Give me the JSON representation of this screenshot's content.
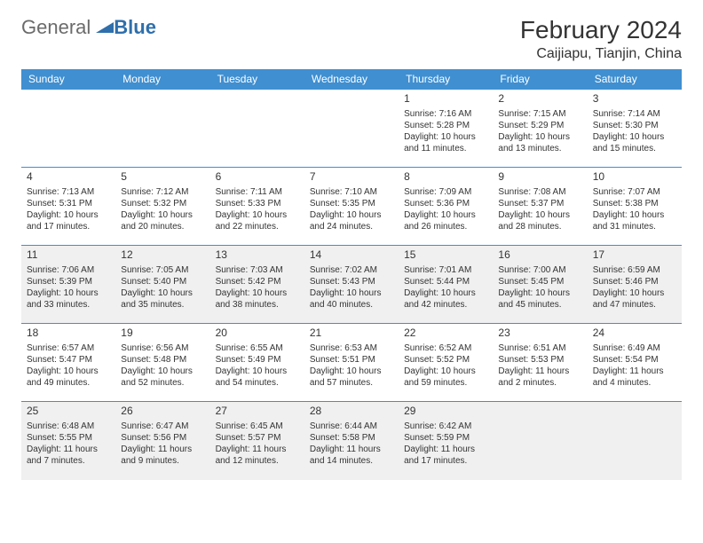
{
  "logo": {
    "part1": "General",
    "part2": "Blue",
    "shape_color": "#2f6fab"
  },
  "title": "February 2024",
  "location": "Caijiapu, Tianjin, China",
  "colors": {
    "header_bg": "#3f8fd1",
    "header_text": "#ffffff",
    "cell_border": "#3f8fd1",
    "shade_bg": "#f0f0f0",
    "text": "#333333",
    "logo_gray": "#6b6b6b",
    "logo_blue": "#2f6fab"
  },
  "day_headers": [
    "Sunday",
    "Monday",
    "Tuesday",
    "Wednesday",
    "Thursday",
    "Friday",
    "Saturday"
  ],
  "weeks": [
    [
      {
        "empty": true
      },
      {
        "empty": true
      },
      {
        "empty": true
      },
      {
        "empty": true
      },
      {
        "n": "1",
        "sr": "7:16 AM",
        "ss": "5:28 PM",
        "dl": "10 hours and 11 minutes."
      },
      {
        "n": "2",
        "sr": "7:15 AM",
        "ss": "5:29 PM",
        "dl": "10 hours and 13 minutes."
      },
      {
        "n": "3",
        "sr": "7:14 AM",
        "ss": "5:30 PM",
        "dl": "10 hours and 15 minutes."
      }
    ],
    [
      {
        "n": "4",
        "sr": "7:13 AM",
        "ss": "5:31 PM",
        "dl": "10 hours and 17 minutes."
      },
      {
        "n": "5",
        "sr": "7:12 AM",
        "ss": "5:32 PM",
        "dl": "10 hours and 20 minutes."
      },
      {
        "n": "6",
        "sr": "7:11 AM",
        "ss": "5:33 PM",
        "dl": "10 hours and 22 minutes."
      },
      {
        "n": "7",
        "sr": "7:10 AM",
        "ss": "5:35 PM",
        "dl": "10 hours and 24 minutes."
      },
      {
        "n": "8",
        "sr": "7:09 AM",
        "ss": "5:36 PM",
        "dl": "10 hours and 26 minutes."
      },
      {
        "n": "9",
        "sr": "7:08 AM",
        "ss": "5:37 PM",
        "dl": "10 hours and 28 minutes."
      },
      {
        "n": "10",
        "sr": "7:07 AM",
        "ss": "5:38 PM",
        "dl": "10 hours and 31 minutes."
      }
    ],
    [
      {
        "n": "11",
        "sr": "7:06 AM",
        "ss": "5:39 PM",
        "dl": "10 hours and 33 minutes."
      },
      {
        "n": "12",
        "sr": "7:05 AM",
        "ss": "5:40 PM",
        "dl": "10 hours and 35 minutes."
      },
      {
        "n": "13",
        "sr": "7:03 AM",
        "ss": "5:42 PM",
        "dl": "10 hours and 38 minutes."
      },
      {
        "n": "14",
        "sr": "7:02 AM",
        "ss": "5:43 PM",
        "dl": "10 hours and 40 minutes."
      },
      {
        "n": "15",
        "sr": "7:01 AM",
        "ss": "5:44 PM",
        "dl": "10 hours and 42 minutes."
      },
      {
        "n": "16",
        "sr": "7:00 AM",
        "ss": "5:45 PM",
        "dl": "10 hours and 45 minutes."
      },
      {
        "n": "17",
        "sr": "6:59 AM",
        "ss": "5:46 PM",
        "dl": "10 hours and 47 minutes."
      }
    ],
    [
      {
        "n": "18",
        "sr": "6:57 AM",
        "ss": "5:47 PM",
        "dl": "10 hours and 49 minutes."
      },
      {
        "n": "19",
        "sr": "6:56 AM",
        "ss": "5:48 PM",
        "dl": "10 hours and 52 minutes."
      },
      {
        "n": "20",
        "sr": "6:55 AM",
        "ss": "5:49 PM",
        "dl": "10 hours and 54 minutes."
      },
      {
        "n": "21",
        "sr": "6:53 AM",
        "ss": "5:51 PM",
        "dl": "10 hours and 57 minutes."
      },
      {
        "n": "22",
        "sr": "6:52 AM",
        "ss": "5:52 PM",
        "dl": "10 hours and 59 minutes."
      },
      {
        "n": "23",
        "sr": "6:51 AM",
        "ss": "5:53 PM",
        "dl": "11 hours and 2 minutes."
      },
      {
        "n": "24",
        "sr": "6:49 AM",
        "ss": "5:54 PM",
        "dl": "11 hours and 4 minutes."
      }
    ],
    [
      {
        "n": "25",
        "sr": "6:48 AM",
        "ss": "5:55 PM",
        "dl": "11 hours and 7 minutes."
      },
      {
        "n": "26",
        "sr": "6:47 AM",
        "ss": "5:56 PM",
        "dl": "11 hours and 9 minutes."
      },
      {
        "n": "27",
        "sr": "6:45 AM",
        "ss": "5:57 PM",
        "dl": "11 hours and 12 minutes."
      },
      {
        "n": "28",
        "sr": "6:44 AM",
        "ss": "5:58 PM",
        "dl": "11 hours and 14 minutes."
      },
      {
        "n": "29",
        "sr": "6:42 AM",
        "ss": "5:59 PM",
        "dl": "11 hours and 17 minutes."
      },
      {
        "empty": true
      },
      {
        "empty": true
      }
    ]
  ],
  "labels": {
    "sunrise": "Sunrise:",
    "sunset": "Sunset:",
    "daylight": "Daylight:"
  },
  "shaded_rows": [
    2,
    4
  ]
}
